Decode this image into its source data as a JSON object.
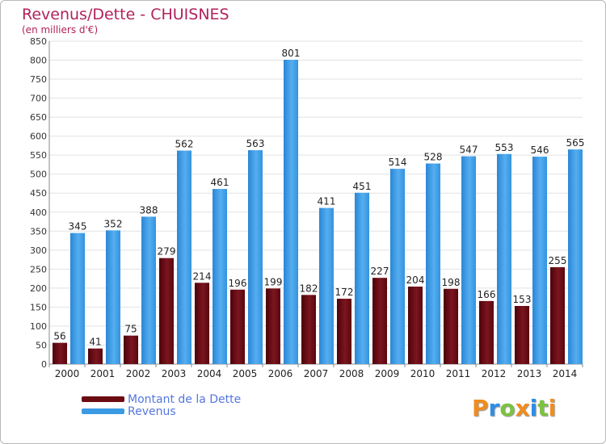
{
  "header": {
    "title": "Revenus/Dette - CHUISNES",
    "subtitle": "(en milliers d'€)"
  },
  "colors": {
    "dette": "#6b0b12",
    "revenus": "#3b9ae4",
    "title": "#b1225b",
    "legend_text": "#5577dd",
    "grid": "#e2e2e2"
  },
  "chart_data": {
    "type": "bar",
    "title": "Revenus/Dette - CHUISNES",
    "ylabel": "(en milliers d'€)",
    "xlabel": "",
    "ylim": [
      0,
      850
    ],
    "yticks": [
      0,
      50,
      100,
      150,
      200,
      250,
      300,
      350,
      400,
      450,
      500,
      550,
      600,
      650,
      700,
      750,
      800,
      850
    ],
    "grid": true,
    "legend_position": "bottom-left",
    "categories": [
      "2000",
      "2001",
      "2002",
      "2003",
      "2004",
      "2005",
      "2006",
      "2007",
      "2008",
      "2009",
      "2010",
      "2011",
      "2012",
      "2013",
      "2014"
    ],
    "series": [
      {
        "name": "Montant de la Dette",
        "values": [
          56,
          41,
          75,
          279,
          214,
          196,
          199,
          182,
          172,
          227,
          204,
          198,
          166,
          153,
          255
        ]
      },
      {
        "name": "Revenus",
        "values": [
          345,
          352,
          388,
          562,
          461,
          563,
          801,
          411,
          451,
          514,
          528,
          547,
          553,
          546,
          565
        ]
      }
    ]
  },
  "legend": {
    "items": [
      {
        "label": "Montant de la Dette",
        "color": "#6b0b12"
      },
      {
        "label": "Revenus",
        "color": "#3b9ae4"
      }
    ]
  },
  "logo": {
    "letters": [
      "P",
      "r",
      "o",
      "x",
      "i",
      "t",
      "i"
    ],
    "colors": [
      "#f08c1e",
      "#2f8de4",
      "#7cc242",
      "#f08c1e",
      "#2f8de4",
      "#7cc242",
      "#f08c1e"
    ]
  }
}
